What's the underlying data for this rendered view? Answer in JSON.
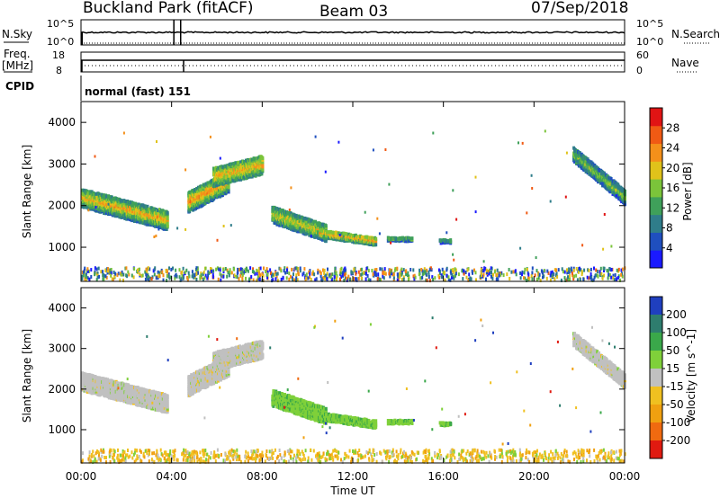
{
  "header": {
    "station": "Buckland Park (fitACF)",
    "beam": "Beam 03",
    "date": "07/Sep/2018"
  },
  "labels": {
    "nsky": "N.Sky",
    "nsearch": "N.Search",
    "freq": "Freq.",
    "mhz": "[MHz]",
    "nave": "Nave",
    "cpid": "CPID",
    "cpid_value": "normal (fast) 151",
    "nsky_top": "10^5",
    "nsky_bot": "10^0",
    "nsearch_top": "10^5",
    "nsearch_bot": "10^0",
    "freq_top": "18",
    "freq_bot": "8",
    "nave_top": "60",
    "nave_bot": "0"
  },
  "chart_data": [
    {
      "type": "heatmap",
      "name": "power",
      "ylabel": "Slant Range [km]",
      "y_ticks": [
        1000,
        2000,
        3000,
        4000
      ],
      "ylim": [
        180,
        4500
      ],
      "x_ticks": [
        "00:00",
        "04:00",
        "08:00",
        "12:00",
        "16:00",
        "20:00",
        "00:00"
      ],
      "xlim_hours": [
        0,
        24
      ],
      "colorbar": {
        "label": "Power [dB]",
        "ticks": [
          4,
          8,
          12,
          16,
          20,
          24,
          28
        ],
        "range": [
          0,
          32
        ],
        "colors": [
          "#1a1aff",
          "#1f4fbf",
          "#2f7d8a",
          "#3fa05a",
          "#7bc43a",
          "#e0c21a",
          "#f4901a",
          "#f05a14",
          "#e01414"
        ]
      }
    },
    {
      "type": "heatmap",
      "name": "velocity",
      "ylabel": "Slant Range [km]",
      "xlabel": "Time UT",
      "y_ticks": [
        1000,
        2000,
        3000,
        4000
      ],
      "ylim": [
        180,
        4500
      ],
      "x_ticks": [
        "00:00",
        "04:00",
        "08:00",
        "12:00",
        "16:00",
        "20:00",
        "00:00"
      ],
      "xlim_hours": [
        0,
        24
      ],
      "colorbar": {
        "label": "Velocity [m s^-1]",
        "ticks": [
          200,
          100,
          50,
          15,
          -15,
          -50,
          -100,
          -200
        ],
        "colors": [
          "#1f3fbf",
          "#2e7d6e",
          "#3aa84a",
          "#7fd03a",
          "#c0c0c0",
          "#f0c020",
          "#f0a010",
          "#f06a10",
          "#e01a10"
        ]
      }
    }
  ]
}
